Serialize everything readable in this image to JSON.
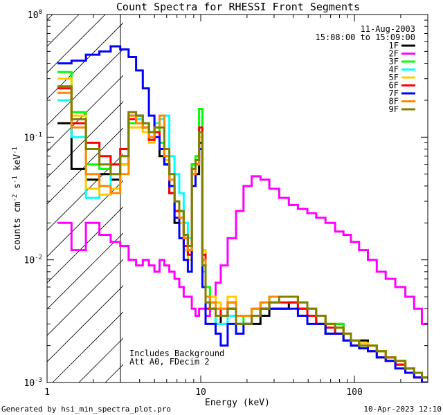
{
  "chart_data": {
    "type": "line",
    "title": "Count Spectra for RHESSI Front Segments",
    "xlabel": "Energy (keV)",
    "ylabel": "counts cm-2 s-1 keV-1",
    "ylabel_parts": {
      "base": "counts cm",
      "e1": "-2",
      "mid1": " s",
      "e2": "-1",
      "mid2": " keV",
      "e3": "-1"
    },
    "xscale": "log",
    "yscale": "log",
    "xlim": [
      1.0,
      300.0
    ],
    "ylim": [
      0.001,
      1.0
    ],
    "xticks": [
      {
        "value": 1,
        "label": "1"
      },
      {
        "value": 10,
        "label": "10"
      },
      {
        "value": 100,
        "label": "100"
      }
    ],
    "yticks": [
      {
        "value": 1,
        "base": "10",
        "exp": "0"
      },
      {
        "value": 0.1,
        "base": "10",
        "exp": "-1"
      },
      {
        "value": 0.01,
        "base": "10",
        "exp": "-2"
      },
      {
        "value": 0.001,
        "base": "10",
        "exp": "-3"
      }
    ],
    "date": "11-Aug-2003",
    "time_range": "15:08:00 to 15:09:00",
    "shaded_region": {
      "x_min": 1.0,
      "x_max": 3.0,
      "pattern": "diagonal hatch"
    },
    "annotations": [
      "Includes Background",
      "Att A0, FDecim 2"
    ],
    "legend_position": "top-right",
    "energy_bins": [
      1.3,
      1.6,
      2.0,
      2.4,
      2.8,
      3.2,
      3.6,
      4.0,
      4.4,
      4.8,
      5.2,
      5.6,
      6.0,
      6.5,
      7.0,
      7.5,
      8.0,
      8.5,
      9.0,
      9.5,
      10.0,
      10.5,
      11.0,
      12.0,
      13.0,
      14.0,
      16.0,
      18.0,
      20.0,
      23.0,
      26.0,
      30.0,
      35.0,
      40.0,
      46.0,
      53.0,
      60.0,
      70.0,
      80.0,
      90.0,
      100.0,
      115.0,
      130.0,
      150.0,
      170.0,
      200.0,
      230.0,
      260.0,
      290.0
    ],
    "series": [
      {
        "name": "1F",
        "color": "#000000",
        "values": [
          0.13,
          0.055,
          0.045,
          0.05,
          0.045,
          0.06,
          0.15,
          0.15,
          0.13,
          0.1,
          0.11,
          0.07,
          0.06,
          0.035,
          0.02,
          0.025,
          0.015,
          0.012,
          0.06,
          0.05,
          0.09,
          0.01,
          0.005,
          0.004,
          0.003,
          0.0035,
          0.004,
          0.003,
          0.003,
          0.003,
          0.0035,
          0.004,
          0.004,
          0.0045,
          0.004,
          0.0035,
          0.003,
          0.0025,
          0.003,
          0.0025,
          0.002,
          0.0022,
          0.002,
          0.0018,
          0.0016,
          0.0014,
          0.0013,
          0.0012,
          0.0011
        ]
      },
      {
        "name": "2F",
        "color": "#ff00ff",
        "values": [
          0.02,
          0.012,
          0.02,
          0.016,
          0.014,
          0.013,
          0.01,
          0.009,
          0.01,
          0.009,
          0.008,
          0.01,
          0.009,
          0.008,
          0.007,
          0.006,
          0.005,
          0.005,
          0.004,
          0.0035,
          0.004,
          0.004,
          0.0035,
          0.005,
          0.0065,
          0.009,
          0.015,
          0.025,
          0.04,
          0.048,
          0.045,
          0.038,
          0.032,
          0.028,
          0.026,
          0.024,
          0.022,
          0.02,
          0.017,
          0.016,
          0.014,
          0.012,
          0.01,
          0.008,
          0.007,
          0.006,
          0.005,
          0.004,
          0.003
        ]
      },
      {
        "name": "3F",
        "color": "#00ff00",
        "values": [
          0.34,
          0.16,
          0.06,
          0.055,
          0.06,
          0.07,
          0.13,
          0.14,
          0.12,
          0.1,
          0.12,
          0.09,
          0.07,
          0.04,
          0.025,
          0.025,
          0.013,
          0.011,
          0.06,
          0.07,
          0.17,
          0.012,
          0.006,
          0.0045,
          0.0035,
          0.0035,
          0.004,
          0.003,
          0.0035,
          0.004,
          0.0045,
          0.005,
          0.005,
          0.005,
          0.0045,
          0.004,
          0.0035,
          0.003,
          0.003,
          0.0025,
          0.0022,
          0.002,
          0.002,
          0.0018,
          0.0016,
          0.0015,
          0.0013,
          0.0012,
          0.0011
        ]
      },
      {
        "name": "4F",
        "color": "#00ffff",
        "values": [
          0.2,
          0.1,
          0.032,
          0.04,
          0.05,
          0.07,
          0.16,
          0.14,
          0.13,
          0.1,
          0.13,
          0.14,
          0.15,
          0.07,
          0.05,
          0.035,
          0.02,
          0.015,
          0.05,
          0.06,
          0.12,
          0.008,
          0.005,
          0.004,
          0.003,
          0.003,
          0.0035,
          0.003,
          0.003,
          0.0035,
          0.004,
          0.0045,
          0.0045,
          0.0045,
          0.004,
          0.0035,
          0.003,
          0.0028,
          0.0025,
          0.0022,
          0.002,
          0.0019,
          0.0018,
          0.0016,
          0.0015,
          0.0014,
          0.0013,
          0.0012,
          0.0011
        ]
      },
      {
        "name": "5F",
        "color": "#ffcc00",
        "values": [
          0.3,
          0.15,
          0.038,
          0.034,
          0.038,
          0.06,
          0.12,
          0.12,
          0.11,
          0.09,
          0.1,
          0.08,
          0.065,
          0.04,
          0.025,
          0.02,
          0.012,
          0.01,
          0.05,
          0.06,
          0.1,
          0.012,
          0.005,
          0.005,
          0.0045,
          0.004,
          0.005,
          0.0035,
          0.0035,
          0.004,
          0.0045,
          0.005,
          0.005,
          0.005,
          0.0045,
          0.004,
          0.0035,
          0.003,
          0.0028,
          0.0025,
          0.0022,
          0.0021,
          0.002,
          0.0018,
          0.0016,
          0.0015,
          0.0013,
          0.0012,
          0.0011
        ]
      },
      {
        "name": "6F",
        "color": "#ff0000",
        "values": [
          0.25,
          0.13,
          0.09,
          0.07,
          0.06,
          0.08,
          0.14,
          0.13,
          0.12,
          0.095,
          0.11,
          0.08,
          0.06,
          0.035,
          0.025,
          0.022,
          0.013,
          0.011,
          0.055,
          0.065,
          0.12,
          0.011,
          0.004,
          0.0045,
          0.004,
          0.0035,
          0.0045,
          0.003,
          0.003,
          0.0035,
          0.004,
          0.0045,
          0.0045,
          0.0045,
          0.004,
          0.0035,
          0.003,
          0.0028,
          0.0025,
          0.0022,
          0.002,
          0.002,
          0.0018,
          0.0016,
          0.0015,
          0.0014,
          0.0012,
          0.0011,
          0.001
        ]
      },
      {
        "name": "7F",
        "color": "#0000ff",
        "values": [
          0.4,
          0.42,
          0.47,
          0.5,
          0.55,
          0.52,
          0.45,
          0.35,
          0.25,
          0.15,
          0.1,
          0.08,
          0.06,
          0.04,
          0.022,
          0.015,
          0.01,
          0.008,
          0.04,
          0.06,
          0.08,
          0.006,
          0.003,
          0.003,
          0.0025,
          0.002,
          0.003,
          0.0025,
          0.003,
          0.0035,
          0.004,
          0.004,
          0.004,
          0.004,
          0.0035,
          0.003,
          0.003,
          0.0025,
          0.0025,
          0.0022,
          0.002,
          0.0019,
          0.0018,
          0.0016,
          0.0015,
          0.0013,
          0.0012,
          0.0011,
          0.001
        ]
      },
      {
        "name": "8F",
        "color": "#ff8800",
        "values": [
          0.23,
          0.12,
          0.05,
          0.04,
          0.035,
          0.05,
          0.15,
          0.13,
          0.12,
          0.1,
          0.12,
          0.15,
          0.07,
          0.045,
          0.03,
          0.022,
          0.015,
          0.012,
          0.05,
          0.06,
          0.11,
          0.01,
          0.005,
          0.0045,
          0.004,
          0.004,
          0.0045,
          0.0035,
          0.0035,
          0.004,
          0.0045,
          0.005,
          0.005,
          0.005,
          0.0045,
          0.004,
          0.0035,
          0.003,
          0.0028,
          0.0025,
          0.0022,
          0.002,
          0.002,
          0.0018,
          0.0016,
          0.0015,
          0.0013,
          0.0012,
          0.0011
        ]
      },
      {
        "name": "9F",
        "color": "#808000",
        "values": [
          0.26,
          0.14,
          0.08,
          0.06,
          0.05,
          0.07,
          0.16,
          0.15,
          0.13,
          0.11,
          0.12,
          0.12,
          0.08,
          0.05,
          0.03,
          0.025,
          0.016,
          0.013,
          0.055,
          0.065,
          0.11,
          0.009,
          0.0045,
          0.004,
          0.0035,
          0.0035,
          0.004,
          0.003,
          0.003,
          0.0035,
          0.004,
          0.0045,
          0.005,
          0.005,
          0.0045,
          0.004,
          0.0035,
          0.003,
          0.0028,
          0.0025,
          0.0022,
          0.002,
          0.002,
          0.0018,
          0.0016,
          0.0015,
          0.0013,
          0.0012,
          0.0011
        ]
      }
    ]
  },
  "footer": {
    "generated_by": "Generated by hsi_min_spectra_plot.pro",
    "timestamp": "10-Apr-2023 12:10"
  }
}
